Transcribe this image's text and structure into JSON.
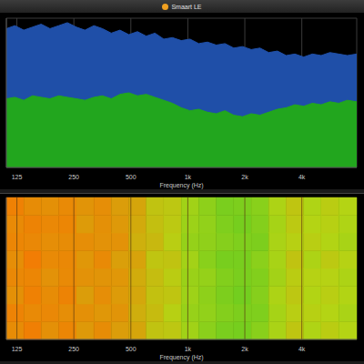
{
  "chart_data": [
    {
      "type": "area",
      "title": "Smaart LE",
      "xlabel": "Frequency (Hz)",
      "log": "x",
      "grid": true,
      "tick_labels": "x",
      "xlim": [
        110,
        7800
      ],
      "xticks": [
        125,
        250,
        500,
        {
          "value": 1000,
          "label": "1k"
        },
        {
          "value": 2000,
          "label": "2k"
        },
        {
          "value": 4000,
          "label": "4k"
        }
      ],
      "ylim": [
        0,
        100
      ],
      "yticks": [
        0,
        20,
        40,
        60,
        80,
        100
      ],
      "x": [
        110,
        122,
        136,
        151,
        168,
        187,
        208,
        231,
        258,
        286,
        319,
        354,
        394,
        438,
        488,
        542,
        603,
        670,
        746,
        829,
        923,
        1026,
        1142,
        1270,
        1413,
        1571,
        1748,
        1943,
        2162,
        2404,
        2674,
        2973,
        3308,
        3678,
        4092,
        4550,
        5062,
        5628,
        6262,
        6962,
        7800
      ],
      "series": [
        {
          "color": "#1f4fa8",
          "values": [
            93,
            95,
            92,
            94,
            96,
            93,
            95,
            97,
            94,
            92,
            95,
            93,
            90,
            92,
            89,
            91,
            88,
            90,
            86,
            87,
            85,
            86,
            83,
            84,
            82,
            83,
            80,
            81,
            79,
            80,
            77,
            78,
            75,
            76,
            74,
            76,
            75,
            77,
            76,
            75,
            76
          ]
        },
        {
          "color": "#22a61e",
          "values": [
            46,
            47,
            45,
            48,
            47,
            46,
            48,
            47,
            46,
            45,
            47,
            48,
            46,
            49,
            50,
            48,
            49,
            47,
            45,
            43,
            40,
            38,
            39,
            37,
            36,
            38,
            35,
            34,
            36,
            35,
            37,
            39,
            40,
            42,
            41,
            43,
            42,
            44,
            43,
            45,
            44
          ]
        }
      ]
    },
    {
      "type": "heatmap",
      "xlabel": "Frequency (Hz)",
      "log": "x",
      "grid": true,
      "tick_labels": "x",
      "xlim": [
        110,
        7800
      ],
      "xticks": [
        125,
        250,
        500,
        {
          "value": 1000,
          "label": "1k"
        },
        {
          "value": 2000,
          "label": "2k"
        },
        {
          "value": 4000,
          "label": "4k"
        }
      ],
      "ylim": [
        0,
        8
      ],
      "x_bins": [
        110,
        136,
        168,
        208,
        258,
        319,
        394,
        488,
        603,
        746,
        923,
        1142,
        1413,
        1748,
        2162,
        2674,
        3308,
        4092,
        5062,
        6262,
        7800
      ],
      "y_bins": [
        0,
        1,
        2,
        3,
        4,
        5,
        6,
        7,
        8
      ],
      "value_range": [
        0,
        100
      ],
      "cells": [
        [
          84,
          90,
          82,
          87,
          78,
          84,
          76,
          72,
          58,
          56,
          42,
          33,
          26,
          24,
          32,
          46,
          57,
          48,
          54,
          50
        ],
        [
          88,
          85,
          86,
          83,
          82,
          79,
          80,
          68,
          62,
          52,
          38,
          36,
          30,
          27,
          28,
          44,
          53,
          52,
          50,
          46
        ],
        [
          82,
          89,
          84,
          88,
          76,
          83,
          77,
          71,
          59,
          57,
          41,
          34,
          27,
          23,
          31,
          47,
          56,
          49,
          53,
          49
        ],
        [
          86,
          87,
          81,
          85,
          81,
          80,
          79,
          69,
          61,
          54,
          39,
          37,
          29,
          26,
          29,
          43,
          54,
          51,
          51,
          47
        ],
        [
          83,
          91,
          85,
          86,
          79,
          85,
          75,
          73,
          57,
          58,
          43,
          32,
          25,
          25,
          33,
          45,
          58,
          47,
          55,
          51
        ],
        [
          87,
          86,
          83,
          84,
          83,
          81,
          81,
          67,
          63,
          53,
          37,
          35,
          31,
          28,
          27,
          46,
          52,
          53,
          49,
          45
        ],
        [
          85,
          88,
          86,
          87,
          77,
          82,
          78,
          70,
          60,
          55,
          40,
          36,
          28,
          24,
          30,
          44,
          55,
          50,
          52,
          48
        ],
        [
          89,
          84,
          82,
          85,
          80,
          83,
          76,
          72,
          58,
          56,
          42,
          34,
          26,
          27,
          32,
          47,
          57,
          48,
          54,
          50
        ]
      ]
    }
  ]
}
